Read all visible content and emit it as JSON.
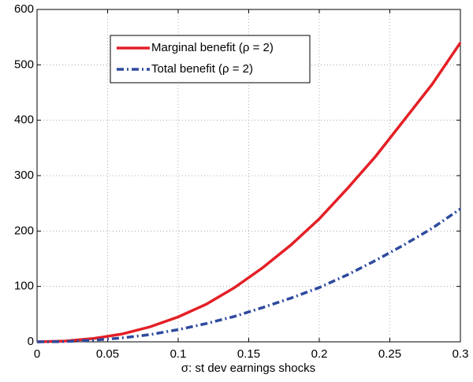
{
  "chart_data": {
    "type": "line",
    "x_label": "σ: st dev earnings shocks",
    "x": [
      0,
      0.02,
      0.04,
      0.06,
      0.08,
      0.1,
      0.12,
      0.14,
      0.16,
      0.18,
      0.2,
      0.22,
      0.24,
      0.26,
      0.28,
      0.3
    ],
    "series": [
      {
        "name": "Marginal benefit (ρ = 2)",
        "color": "#e41f26",
        "dash": "solid",
        "values": [
          0,
          1.5,
          6,
          14,
          27,
          45,
          68,
          98,
          134,
          175,
          222,
          277,
          335,
          400,
          465,
          540
        ]
      },
      {
        "name": "Total benefit (ρ = 2)",
        "color": "#2e4a9e",
        "dash": "dashdot",
        "values": [
          0,
          0.5,
          3,
          7,
          13,
          22,
          33,
          46,
          62,
          79,
          98,
          121,
          147,
          175,
          205,
          240
        ]
      }
    ],
    "xlim": [
      0,
      0.3
    ],
    "xticks": [
      0,
      0.05,
      0.1,
      0.15,
      0.2,
      0.25,
      0.3
    ],
    "ylim": [
      0,
      600
    ],
    "yticks": [
      0,
      100,
      200,
      300,
      400,
      500,
      600
    ],
    "grid": true,
    "legend": "upper-left"
  }
}
